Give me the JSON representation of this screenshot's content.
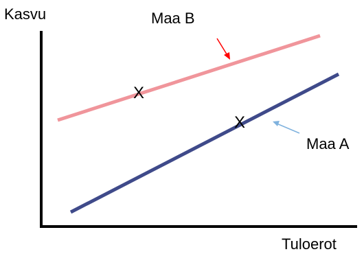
{
  "axes": {
    "y_label": "Kasvu",
    "x_label": "Tuloerot"
  },
  "lines": {
    "country_b": {
      "label": "Maa B",
      "color": "#F0959B"
    },
    "country_a": {
      "label": "Maa A",
      "color": "#3F4A8A"
    }
  },
  "points": {
    "marker": "X"
  },
  "arrows": {
    "country_b_color": "#FF0000",
    "country_a_color": "#7FB2DE"
  }
}
